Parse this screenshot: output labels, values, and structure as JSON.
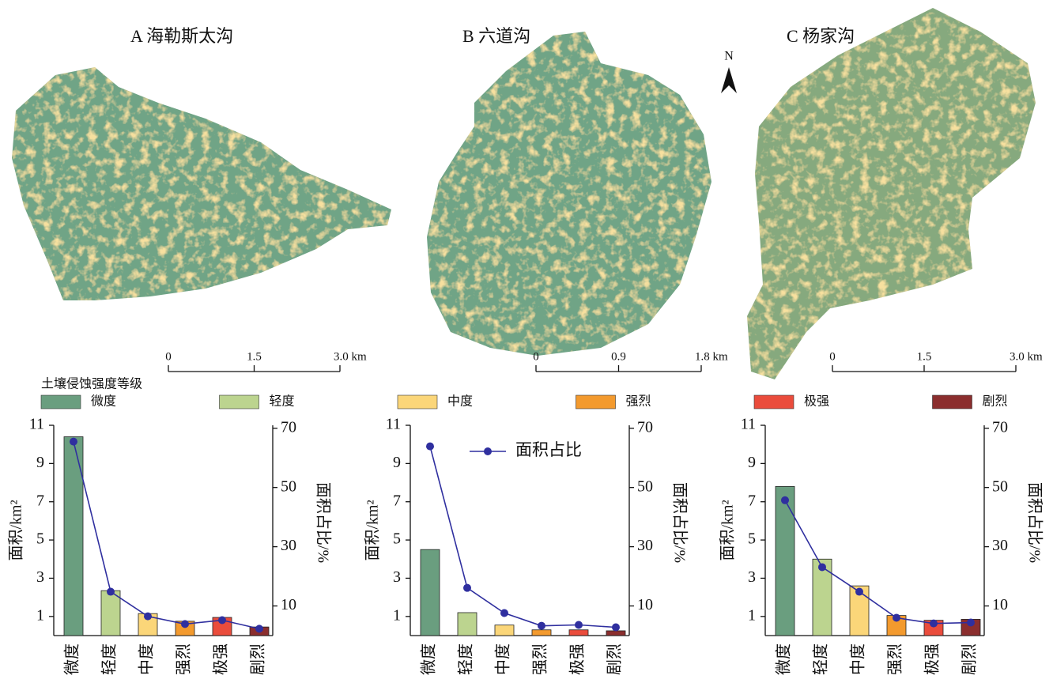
{
  "maps": [
    {
      "title": "A 海勒斯太沟",
      "scale_labels": [
        "0",
        "1.5",
        "3.0 km"
      ]
    },
    {
      "title": "B 六道沟",
      "scale_labels": [
        "0",
        "0.9",
        "1.8 km"
      ]
    },
    {
      "title": "C 杨家沟",
      "scale_labels": [
        "0",
        "1.5",
        "3.0 km"
      ]
    }
  ],
  "north": "N",
  "legend": {
    "title": "土壤侵蚀强度等级",
    "items": [
      {
        "label": "微度",
        "color": "#6a9e7f"
      },
      {
        "label": "轻度",
        "color": "#bcd48f"
      },
      {
        "label": "中度",
        "color": "#fbd679"
      },
      {
        "label": "强烈",
        "color": "#f39a2e"
      },
      {
        "label": "极强",
        "color": "#ea4c3c"
      },
      {
        "label": "剧烈",
        "color": "#8b2e2e"
      }
    ]
  },
  "chart_data": [
    {
      "type": "bar",
      "categories": [
        "微度",
        "轻度",
        "中度",
        "强烈",
        "极强",
        "剧烈"
      ],
      "ylabel": "面积/km²",
      "y2label": "面积占比/%",
      "ylim": [
        0,
        11
      ],
      "yticks": [
        1,
        3,
        5,
        7,
        9,
        11
      ],
      "y2lim": [
        0,
        71
      ],
      "y2ticks": [
        10,
        30,
        50,
        70
      ],
      "series": [
        {
          "type": "bar",
          "colors": [
            "#6a9e7f",
            "#bcd48f",
            "#fbd679",
            "#f39a2e",
            "#ea4c3c",
            "#8b2e2e"
          ],
          "values": [
            10.4,
            2.35,
            1.15,
            0.75,
            0.95,
            0.45
          ]
        },
        {
          "type": "line",
          "axis": "y2",
          "color": "#2f2f9f",
          "values": [
            65.5,
            14.8,
            6.5,
            3.9,
            5.2,
            2.3
          ]
        }
      ]
    },
    {
      "type": "bar",
      "categories": [
        "微度",
        "轻度",
        "中度",
        "强烈",
        "极强",
        "剧烈"
      ],
      "ylabel": "面积/km²",
      "y2label": "面积占比/%",
      "ylim": [
        0,
        11
      ],
      "yticks": [
        1,
        3,
        5,
        7,
        9,
        11
      ],
      "y2lim": [
        0,
        71
      ],
      "y2ticks": [
        10,
        30,
        50,
        70
      ],
      "series": [
        {
          "type": "bar",
          "colors": [
            "#6a9e7f",
            "#bcd48f",
            "#fbd679",
            "#f39a2e",
            "#ea4c3c",
            "#8b2e2e"
          ],
          "values": [
            4.5,
            1.2,
            0.55,
            0.3,
            0.3,
            0.25
          ]
        },
        {
          "type": "line",
          "axis": "y2",
          "name": "面积占比",
          "color": "#2f2f9f",
          "values": [
            63.9,
            16.1,
            7.6,
            3.3,
            3.6,
            2.8
          ]
        }
      ],
      "legend": true
    },
    {
      "type": "bar",
      "categories": [
        "微度",
        "轻度",
        "中度",
        "强烈",
        "极强",
        "剧烈"
      ],
      "ylabel": "面积/km²",
      "y2label": "面积占比/%",
      "ylim": [
        0,
        11
      ],
      "yticks": [
        1,
        3,
        5,
        7,
        9,
        11
      ],
      "y2lim": [
        0,
        71
      ],
      "y2ticks": [
        10,
        30,
        50,
        70
      ],
      "series": [
        {
          "type": "bar",
          "colors": [
            "#6a9e7f",
            "#bcd48f",
            "#fbd679",
            "#f39a2e",
            "#ea4c3c",
            "#8b2e2e"
          ],
          "values": [
            7.8,
            4.0,
            2.6,
            1.05,
            0.8,
            0.85
          ]
        },
        {
          "type": "line",
          "axis": "y2",
          "color": "#2f2f9f",
          "values": [
            45.7,
            23.1,
            14.8,
            6.0,
            4.1,
            4.4
          ]
        }
      ]
    }
  ]
}
